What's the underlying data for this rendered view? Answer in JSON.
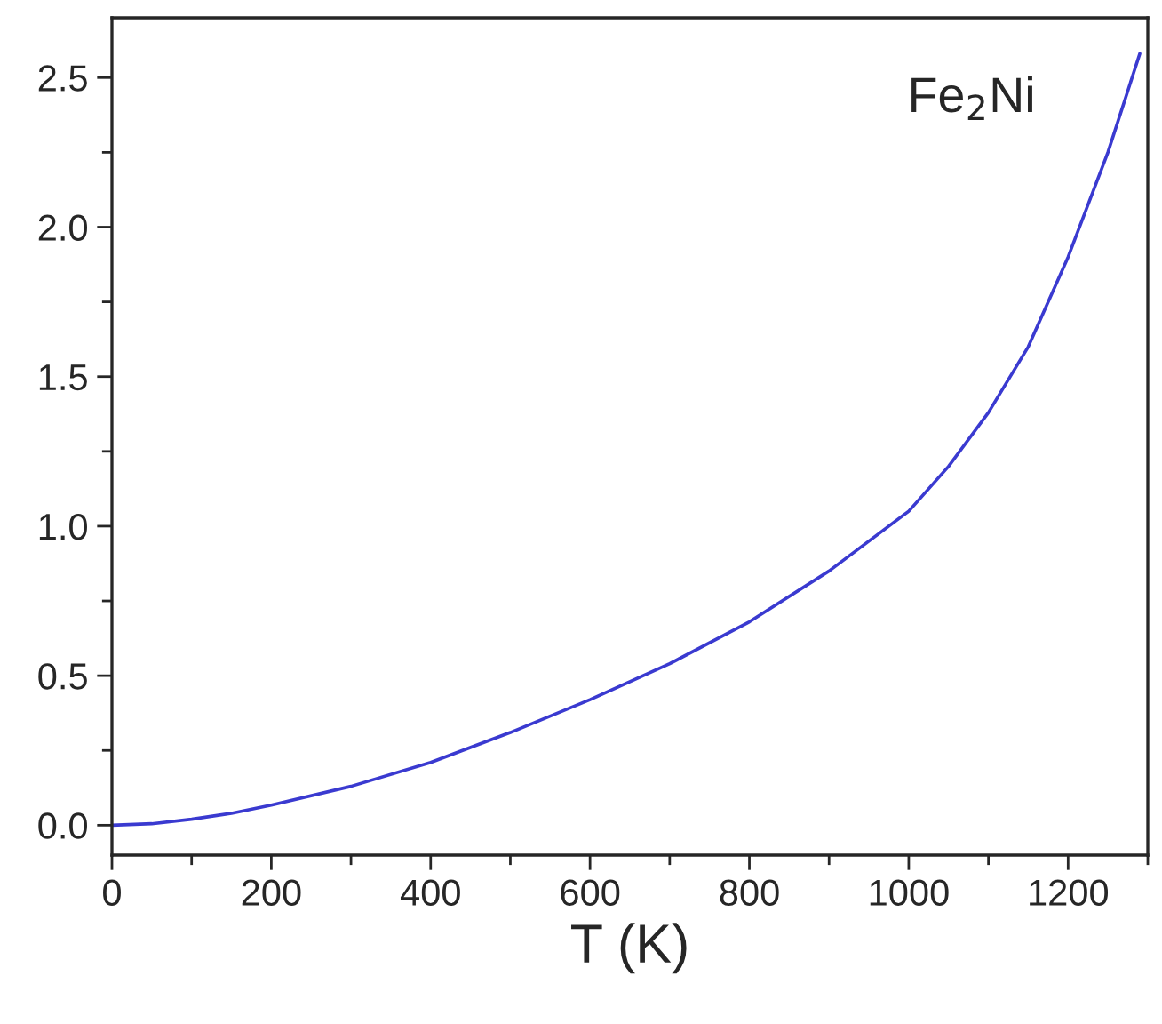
{
  "chart_data": {
    "type": "line",
    "xlabel": "T (K)",
    "x": [
      0,
      50,
      100,
      150,
      200,
      300,
      400,
      500,
      600,
      700,
      800,
      900,
      1000,
      1050,
      1100,
      1150,
      1200,
      1250,
      1290
    ],
    "series": [
      {
        "color": "#3a3ad0",
        "values": [
          0,
          0.005,
          0.02,
          0.04,
          0.067,
          0.13,
          0.21,
          0.31,
          0.42,
          0.54,
          0.68,
          0.85,
          1.05,
          1.2,
          1.38,
          1.6,
          1.9,
          2.25,
          2.58
        ]
      }
    ],
    "xlim": [
      0,
      1300
    ],
    "xticks": [
      0,
      200,
      400,
      600,
      800,
      1000,
      1200
    ],
    "ylim": [
      -0.1,
      2.7
    ],
    "yticks": [
      {
        "value": 0,
        "label": "0.0"
      },
      0.5,
      {
        "value": 1,
        "label": "1.0"
      },
      1.5,
      {
        "value": 2,
        "label": "2.0"
      },
      2.5
    ],
    "annotations": [
      "Fe$_{2}$Ni"
    ],
    "grid": false,
    "legend": false
  }
}
